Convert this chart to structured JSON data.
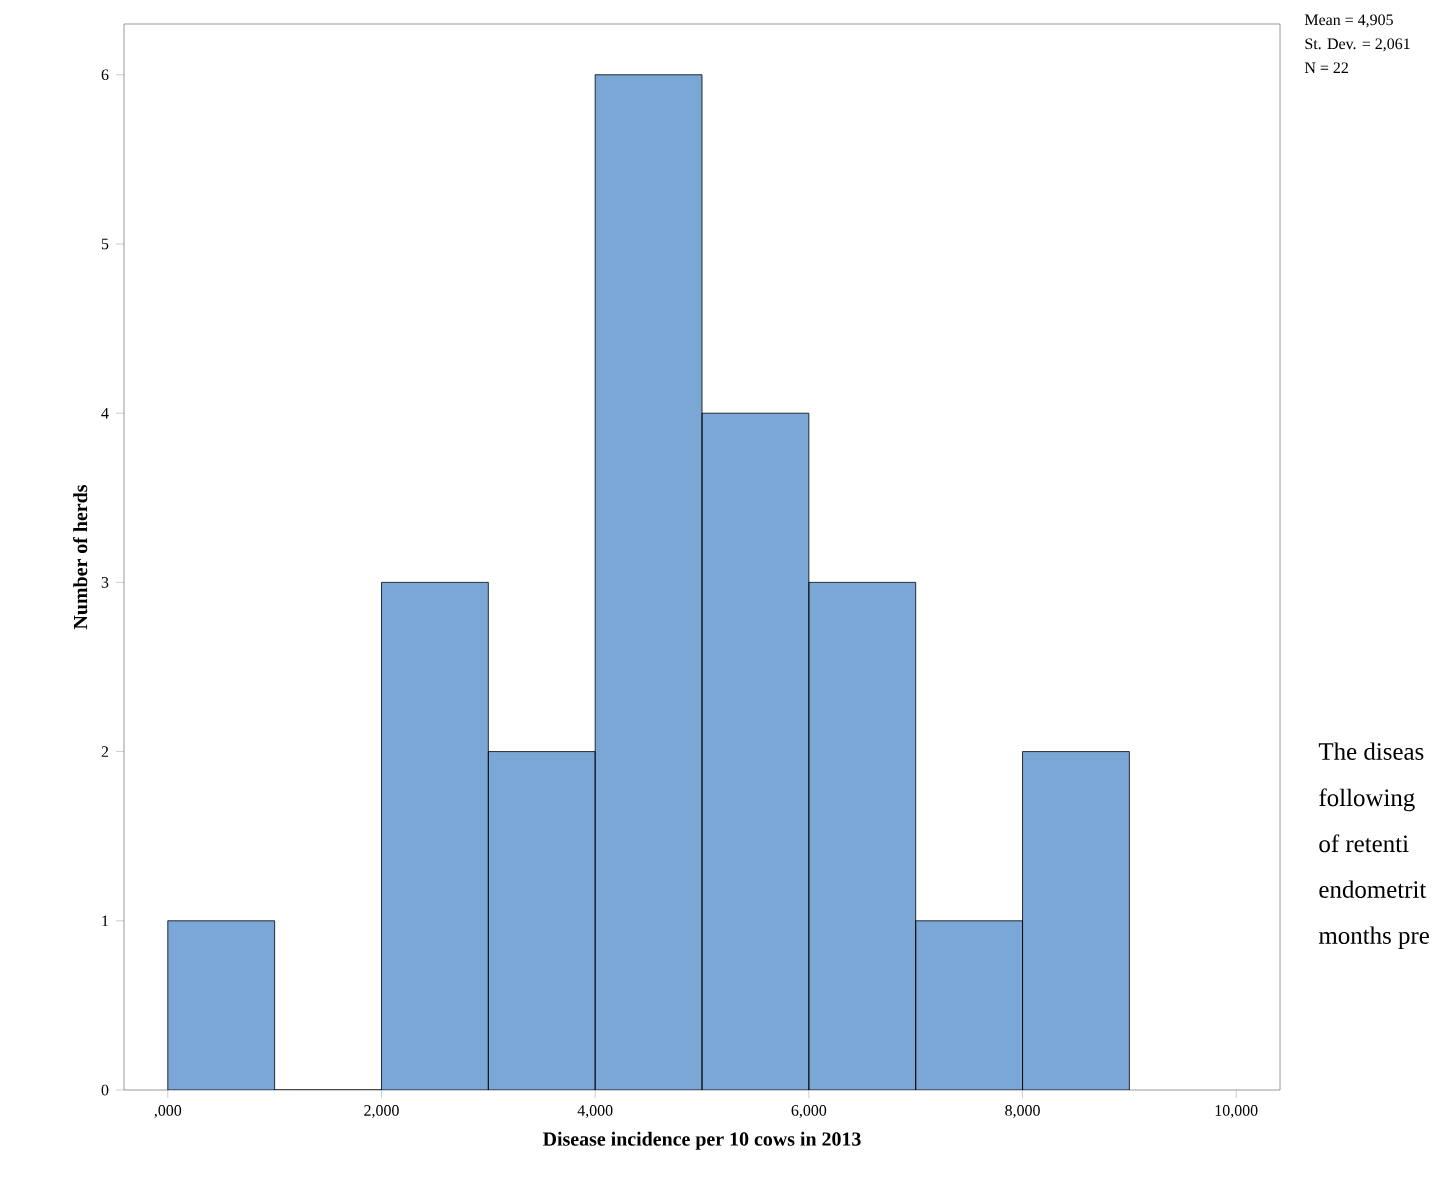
{
  "chart_data": {
    "type": "histogram",
    "xlabel": "Disease incidence per 10 cows in 2013",
    "ylabel": "Number of herds",
    "bins": [
      0,
      1000,
      2000,
      3000,
      4000,
      5000,
      6000,
      7000,
      8000,
      9000
    ],
    "values": [
      1,
      0,
      3,
      2,
      6,
      4,
      3,
      1,
      2
    ],
    "color": "#7ba7d7",
    "xlim": [
      -410,
      10410
    ],
    "ylim": [
      0,
      6.3
    ],
    "xticks": [
      {
        "value": 0,
        "label": ",000"
      },
      {
        "value": 2000,
        "label": "2,000"
      },
      {
        "value": 4000,
        "label": "4,000"
      },
      {
        "value": 6000,
        "label": "6,000"
      },
      {
        "value": 8000,
        "label": "8,000"
      },
      {
        "value": 10000,
        "label": "10,000"
      }
    ],
    "yticks": [
      0,
      1,
      2,
      3,
      4,
      5,
      6
    ],
    "grid": false,
    "annotations": [
      "Mean = 4,905",
      "St. Dev. = 2,061",
      "N = 22",
      "The diseas",
      "following",
      "of retenti",
      "endometrit",
      "months pre"
    ]
  }
}
